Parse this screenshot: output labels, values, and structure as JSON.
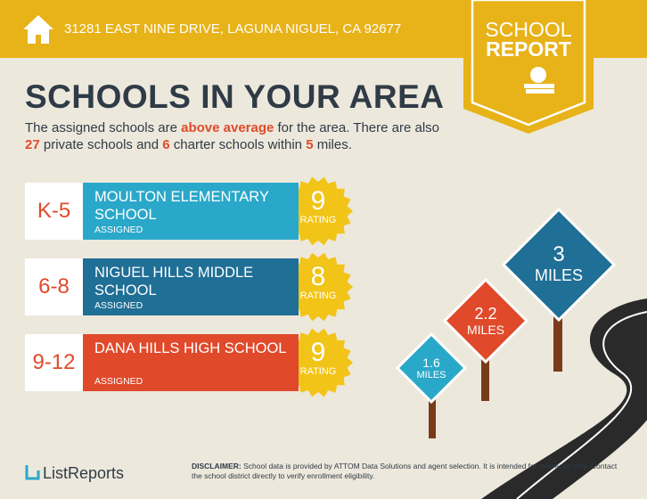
{
  "header": {
    "address": "31281 EAST NINE DRIVE, LAGUNA NIGUEL, CA 92677"
  },
  "badge": {
    "line1": "SCHOOL",
    "line2": "REPORT"
  },
  "title": "SCHOOLS IN YOUR AREA",
  "intro": {
    "parts": [
      "The assigned schools are ",
      "above average",
      " for the area. There are also ",
      "27",
      " private schools and ",
      "6",
      " charter schools within ",
      "5",
      " miles."
    ]
  },
  "schools": [
    {
      "grade": "K-5",
      "name": "MOULTON ELEMENTARY SCHOOL",
      "status": "ASSIGNED",
      "rating": "9",
      "rating_label": "RATING",
      "color": "#2aa8c9"
    },
    {
      "grade": "6-8",
      "name": "NIGUEL HILLS MIDDLE SCHOOL",
      "status": "ASSIGNED",
      "rating": "8",
      "rating_label": "RATING",
      "color": "#1f6f96"
    },
    {
      "grade": "9-12",
      "name": "DANA HILLS HIGH SCHOOL",
      "status": "ASSIGNED",
      "rating": "9",
      "rating_label": "RATING",
      "color": "#e04a2b"
    }
  ],
  "signs": [
    {
      "distance": "1.6",
      "unit": "MILES",
      "color": "#2aa8c9"
    },
    {
      "distance": "2.2",
      "unit": "MILES",
      "color": "#e04a2b"
    },
    {
      "distance": "3",
      "unit": "MILES",
      "color": "#1f6f96"
    }
  ],
  "footer": {
    "logo": "ListReports",
    "disclaimer_label": "DISCLAIMER:",
    "disclaimer": "School data is provided by ATTOM Data Solutions and agent selection. It is intended for reference only. Contact the school district directly to verify enrollment eligibility."
  }
}
